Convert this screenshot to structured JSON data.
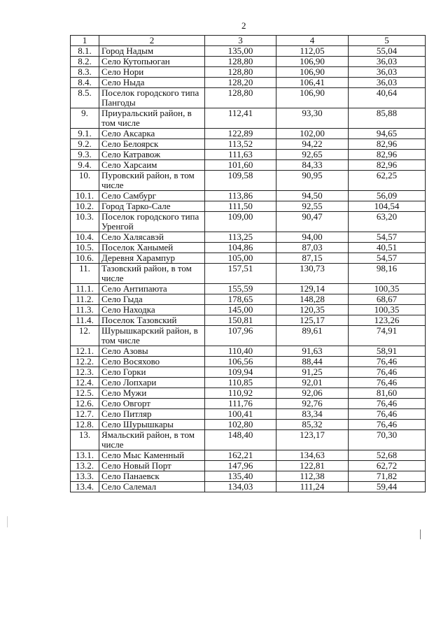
{
  "page_number": "2",
  "table": {
    "headers": [
      "1",
      "2",
      "3",
      "4",
      "5"
    ],
    "rows": [
      [
        "8.1.",
        "Город Надым",
        "135,00",
        "112,05",
        "55,04"
      ],
      [
        "8.2.",
        "Село Кутопьюган",
        "128,80",
        "106,90",
        "36,03"
      ],
      [
        "8.3.",
        "Село Нори",
        "128,80",
        "106,90",
        "36,03"
      ],
      [
        "8.4.",
        "Село Ныда",
        "128,20",
        "106,41",
        "36,03"
      ],
      [
        "8.5.",
        "Поселок городского типа Пангоды",
        "128,80",
        "106,90",
        "40,64"
      ],
      [
        "9.",
        "Приуральский район, в том числе",
        "112,41",
        "93,30",
        "85,88"
      ],
      [
        "9.1.",
        "Село Аксарка",
        "122,89",
        "102,00",
        "94,65"
      ],
      [
        "9.2.",
        "Село Белоярск",
        "113,52",
        "94,22",
        "82,96"
      ],
      [
        "9.3.",
        "Село Катравож",
        "111,63",
        "92,65",
        "82,96"
      ],
      [
        "9.4.",
        "Село Харсаим",
        "101,60",
        "84,33",
        "82,96"
      ],
      [
        "10.",
        "Пуровский район, в том числе",
        "109,58",
        "90,95",
        "62,25"
      ],
      [
        "10.1.",
        "Село Самбург",
        "113,86",
        "94,50",
        "56,09"
      ],
      [
        "10.2.",
        "Город Тарко-Сале",
        "111,50",
        "92,55",
        "104,54"
      ],
      [
        "10.3.",
        "Поселок городского типа Уренгой",
        "109,00",
        "90,47",
        "63,20"
      ],
      [
        "10.4.",
        "Село Халясавэй",
        "113,25",
        "94,00",
        "54,57"
      ],
      [
        "10.5.",
        "Поселок Ханымей",
        "104,86",
        "87,03",
        "40,51"
      ],
      [
        "10.6.",
        "Деревня Харампур",
        "105,00",
        "87,15",
        "54,57"
      ],
      [
        "11.",
        "Тазовский район, в том числе",
        "157,51",
        "130,73",
        "98,16"
      ],
      [
        "11.1.",
        "Село Антипаюта",
        "155,59",
        "129,14",
        "100,35"
      ],
      [
        "11.2.",
        "Село Гыда",
        "178,65",
        "148,28",
        "68,67"
      ],
      [
        "11.3.",
        "Село Находка",
        "145,00",
        "120,35",
        "100,35"
      ],
      [
        "11.4.",
        "Поселок Тазовский",
        "150,81",
        "125,17",
        "123,26"
      ],
      [
        "12.",
        "Шурышкарский район, в том числе",
        "107,96",
        "89,61",
        "74,91"
      ],
      [
        "12.1.",
        "Село Азовы",
        "110,40",
        "91,63",
        "58,91"
      ],
      [
        "12.2.",
        "Село Восяхово",
        "106,56",
        "88,44",
        "76,46"
      ],
      [
        "12.3.",
        "Село Горки",
        "109,94",
        "91,25",
        "76,46"
      ],
      [
        "12.4.",
        "Село Лопхари",
        "110,85",
        "92,01",
        "76,46"
      ],
      [
        "12.5.",
        "Село Мужи",
        "110,92",
        "92,06",
        "81,60"
      ],
      [
        "12.6.",
        "Село Овгорт",
        "111,76",
        "92,76",
        "76,46"
      ],
      [
        "12.7.",
        "Село Питляр",
        "100,41",
        "83,34",
        "76,46"
      ],
      [
        "12.8.",
        "Село Шурышкары",
        "102,80",
        "85,32",
        "76,46"
      ],
      [
        "13.",
        "Ямальский район, в том числе",
        "148,40",
        "123,17",
        "70,30"
      ],
      [
        "13.1.",
        "Село Мыс Каменный",
        "162,21",
        "134,63",
        "52,68"
      ],
      [
        "13.2.",
        "Село Новый Порт",
        "147,96",
        "122,81",
        "62,72"
      ],
      [
        "13.3.",
        "Село Панаевск",
        "135,40",
        "112,38",
        "71,82"
      ],
      [
        "13.4.",
        "Село Салемал",
        "134,03",
        "111,24",
        "59,44"
      ]
    ]
  }
}
